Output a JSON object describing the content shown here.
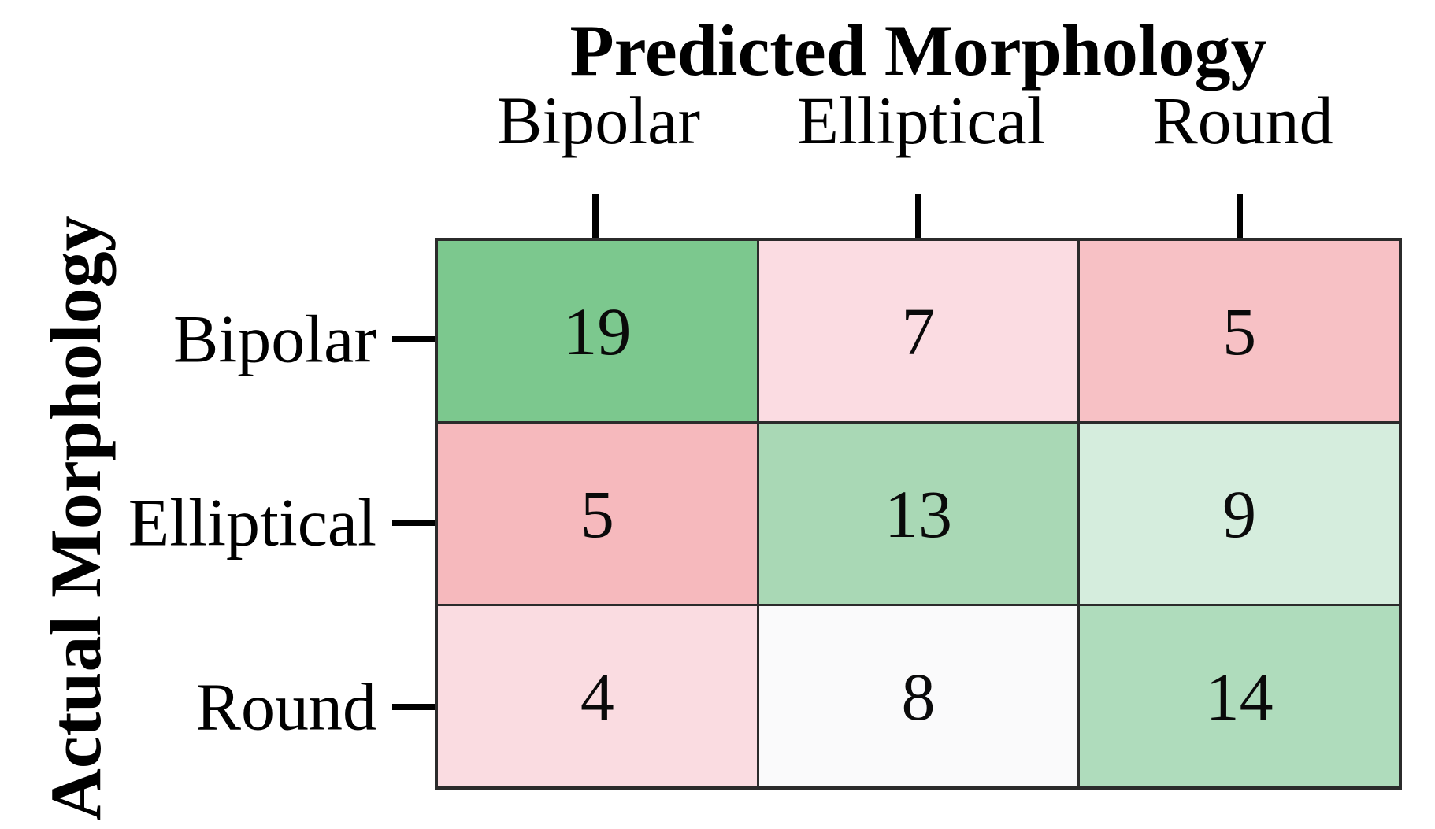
{
  "figure": {
    "background_color": "#ffffff",
    "grid_line_color": "#2b2b2b",
    "tick_color": "#000000",
    "text_color": "#000000"
  },
  "chart_data": {
    "type": "heatmap",
    "subtype": "confusion-matrix",
    "title": "Predicted Morphology",
    "title_position": "top",
    "xlabel": "Predicted Morphology",
    "ylabel": "Actual Morphology",
    "categories": [
      "Bipolar",
      "Elliptical",
      "Round"
    ],
    "x_axis_labels": [
      "Bipolar",
      "Elliptical",
      "Round"
    ],
    "y_axis_labels": [
      "Bipolar",
      "Elliptical",
      "Round"
    ],
    "matrix": [
      [
        19,
        7,
        5
      ],
      [
        5,
        13,
        9
      ],
      [
        4,
        8,
        14
      ]
    ],
    "cell_colors": [
      [
        "#7cc88e",
        "#fbdce2",
        "#f7c1c5"
      ],
      [
        "#f6b9bd",
        "#a9d8b5",
        "#d5eddd"
      ],
      [
        "#fadce1",
        "#fafafb",
        "#afdcbc"
      ]
    ],
    "legend": "none",
    "grid": "cell-borders-only"
  }
}
